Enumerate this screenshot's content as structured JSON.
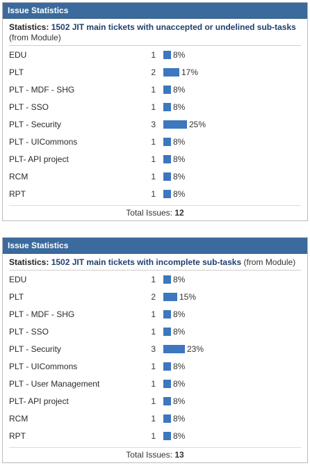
{
  "gadgets": [
    {
      "header": "Issue Statistics",
      "stats_label": "Statistics:",
      "filter_name": "1502 JIT main tickets with unaccepted or undelined sub-tasks",
      "from_label": "(from Module)",
      "rows": [
        {
          "name": "EDU",
          "count": "1",
          "percent": "8%",
          "value": 8
        },
        {
          "name": "PLT",
          "count": "2",
          "percent": "17%",
          "value": 17
        },
        {
          "name": "PLT - MDF - SHG",
          "count": "1",
          "percent": "8%",
          "value": 8
        },
        {
          "name": "PLT - SSO",
          "count": "1",
          "percent": "8%",
          "value": 8
        },
        {
          "name": "PLT - Security",
          "count": "3",
          "percent": "25%",
          "value": 25
        },
        {
          "name": "PLT - UICommons",
          "count": "1",
          "percent": "8%",
          "value": 8
        },
        {
          "name": "PLT- API project",
          "count": "1",
          "percent": "8%",
          "value": 8
        },
        {
          "name": "RCM",
          "count": "1",
          "percent": "8%",
          "value": 8
        },
        {
          "name": "RPT",
          "count": "1",
          "percent": "8%",
          "value": 8
        }
      ],
      "total_label": "Total Issues:",
      "total": "12"
    },
    {
      "header": "Issue Statistics",
      "stats_label": "Statistics:",
      "filter_name": "1502 JIT main tickets with incomplete sub-tasks",
      "from_label": "(from Module)",
      "rows": [
        {
          "name": "EDU",
          "count": "1",
          "percent": "8%",
          "value": 8
        },
        {
          "name": "PLT",
          "count": "2",
          "percent": "15%",
          "value": 15
        },
        {
          "name": "PLT - MDF - SHG",
          "count": "1",
          "percent": "8%",
          "value": 8
        },
        {
          "name": "PLT - SSO",
          "count": "1",
          "percent": "8%",
          "value": 8
        },
        {
          "name": "PLT - Security",
          "count": "3",
          "percent": "23%",
          "value": 23
        },
        {
          "name": "PLT - UICommons",
          "count": "1",
          "percent": "8%",
          "value": 8
        },
        {
          "name": "PLT - User Management",
          "count": "1",
          "percent": "8%",
          "value": 8
        },
        {
          "name": "PLT- API project",
          "count": "1",
          "percent": "8%",
          "value": 8
        },
        {
          "name": "RCM",
          "count": "1",
          "percent": "8%",
          "value": 8
        },
        {
          "name": "RPT",
          "count": "1",
          "percent": "8%",
          "value": 8
        }
      ],
      "total_label": "Total Issues:",
      "total": "13"
    }
  ],
  "colors": {
    "header_bg": "#3b6a9c",
    "bar": "#3c77bf"
  }
}
